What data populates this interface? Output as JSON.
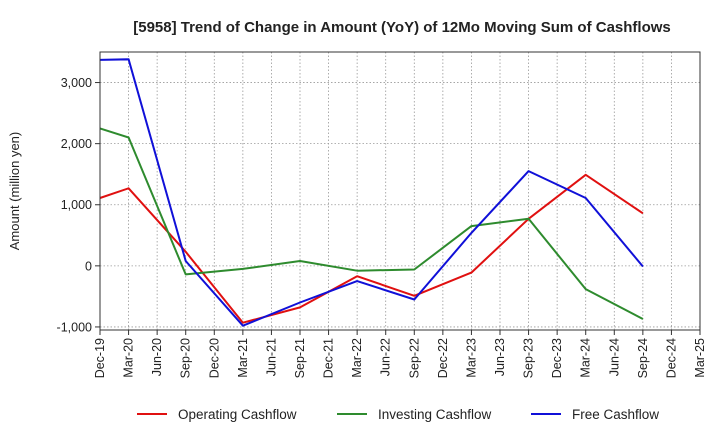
{
  "chart_data": {
    "type": "line",
    "title": "[5958]  Trend of Change in Amount (YoY) of 12Mo Moving Sum of Cashflows",
    "xlabel": "",
    "ylabel": "Amount (million yen)",
    "ylim": [
      -1050,
      3500
    ],
    "yticks": [
      -1000,
      0,
      1000,
      2000,
      3000
    ],
    "ytick_labels": [
      "-1,000",
      "0",
      "1,000",
      "2,000",
      "3,000"
    ],
    "categories": [
      "Dec-19",
      "Mar-20",
      "Jun-20",
      "Sep-20",
      "Dec-20",
      "Mar-21",
      "Jun-21",
      "Sep-21",
      "Dec-21",
      "Mar-22",
      "Jun-22",
      "Sep-22",
      "Dec-22",
      "Mar-23",
      "Jun-23",
      "Sep-23",
      "Dec-23",
      "Mar-24",
      "Jun-24",
      "Sep-24",
      "Dec-24",
      "Mar-25"
    ],
    "series": [
      {
        "name": "Operating Cashflow",
        "color": "#e01010",
        "values": [
          1110,
          1270,
          null,
          230,
          null,
          -930,
          null,
          -680,
          null,
          -170,
          null,
          -490,
          null,
          -110,
          null,
          770,
          null,
          1490,
          null,
          860,
          null,
          null
        ]
      },
      {
        "name": "Investing Cashflow",
        "color": "#2e8b2e",
        "values": [
          2250,
          2100,
          null,
          -140,
          null,
          -50,
          null,
          80,
          null,
          -80,
          null,
          -60,
          null,
          650,
          null,
          770,
          null,
          -380,
          null,
          -870,
          null,
          null
        ]
      },
      {
        "name": "Free Cashflow",
        "color": "#1010d8",
        "values": [
          3370,
          3380,
          null,
          80,
          null,
          -980,
          null,
          -600,
          null,
          -250,
          null,
          -550,
          null,
          540,
          null,
          1550,
          null,
          1110,
          null,
          -10,
          null,
          null
        ]
      }
    ],
    "grid": true,
    "legend": "bottom"
  }
}
